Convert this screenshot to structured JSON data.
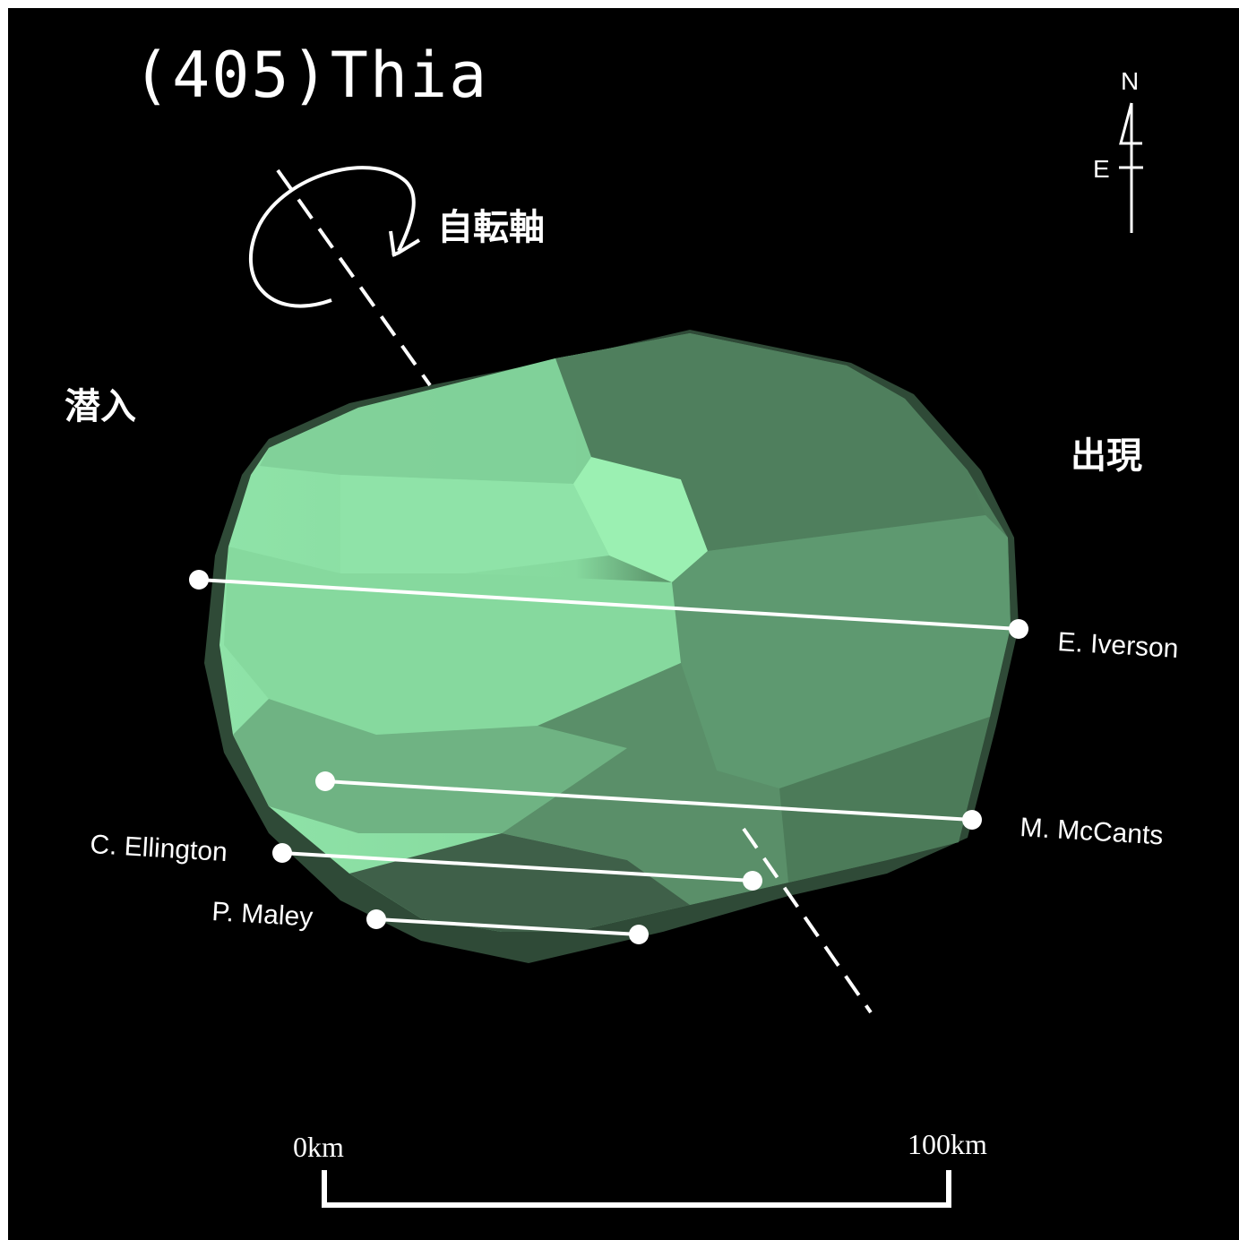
{
  "title": "(405)Thia",
  "labels": {
    "rotation_axis": "自転軸",
    "disappearance": "潜入",
    "reappearance": "出現"
  },
  "compass": {
    "north": "N",
    "east": "E"
  },
  "observers": [
    {
      "name": "E. Iverson"
    },
    {
      "name": "M. McCants"
    },
    {
      "name": "C. Ellington"
    },
    {
      "name": "P. Maley"
    }
  ],
  "scale_bar": {
    "start_label": "0km",
    "end_label": "100km",
    "length_km": 100
  },
  "colors": {
    "background": "#000000",
    "asteroid_light": "#8fe3a8",
    "asteroid_mid": "#6aaf7e",
    "asteroid_dark": "#4e7d5c",
    "chord": "#ffffff"
  }
}
